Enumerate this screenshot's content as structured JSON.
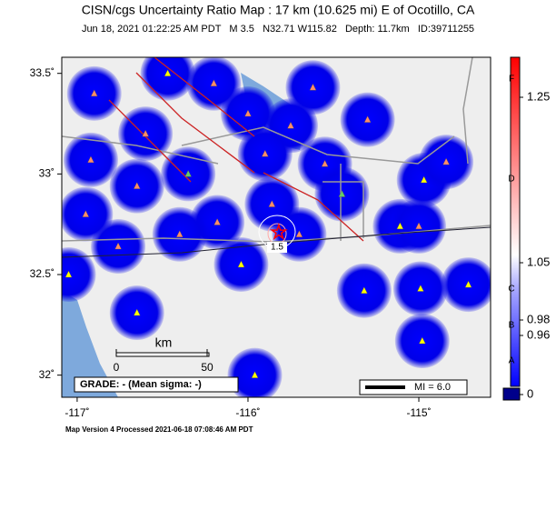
{
  "header": {
    "title": "CISN/cgs Uncertainty Ratio Map : 17 km (10.625 mi) E of Ocotillo, CA",
    "subtitle": "Jun 18, 2021 01:22:25 AM PDT   M 3.5   N32.71 W115.82   Depth: 11.7km   ID:39711255"
  },
  "map": {
    "xlim": [
      -117.09,
      -114.58
    ],
    "ylim": [
      31.89,
      33.58
    ],
    "xticks": [
      {
        "value": -117,
        "label": "-117˚"
      },
      {
        "value": -116,
        "label": "-116˚"
      },
      {
        "value": -115,
        "label": "-115˚"
      }
    ],
    "yticks": [
      {
        "value": 33.5,
        "label": "33.5˚"
      },
      {
        "value": 33,
        "label": "33˚"
      },
      {
        "value": 32.5,
        "label": "32.5˚"
      },
      {
        "value": 32,
        "label": "32˚"
      }
    ],
    "stations": [
      {
        "lon": -116.65,
        "lat": 32.31,
        "color": "#ffff00"
      },
      {
        "lon": -115.96,
        "lat": 32.0,
        "color": "#ffff00"
      },
      {
        "lon": -115.32,
        "lat": 32.42,
        "color": "#ffff00"
      },
      {
        "lon": -114.99,
        "lat": 32.43,
        "color": "#ffff00"
      },
      {
        "lon": -114.71,
        "lat": 32.45,
        "color": "#ffff00"
      },
      {
        "lon": -114.98,
        "lat": 32.17,
        "color": "#ffff00"
      },
      {
        "lon": -115.62,
        "lat": 33.43,
        "color": "#ff8c69"
      },
      {
        "lon": -115.3,
        "lat": 33.27,
        "color": "#ff8c69"
      },
      {
        "lon": -114.97,
        "lat": 32.97,
        "color": "#ffff00"
      },
      {
        "lon": -114.84,
        "lat": 33.06,
        "color": "#ff8c69"
      },
      {
        "lon": -115.11,
        "lat": 32.74,
        "color": "#ffff00"
      },
      {
        "lon": -115.0,
        "lat": 32.74,
        "color": "#ff8c69"
      },
      {
        "lon": -116.04,
        "lat": 32.55,
        "color": "#ffff00"
      },
      {
        "lon": -116.65,
        "lat": 32.94,
        "color": "#ff8c69"
      },
      {
        "lon": -116.92,
        "lat": 33.07,
        "color": "#ff8c69"
      },
      {
        "lon": -116.76,
        "lat": 32.64,
        "color": "#ff8c69"
      },
      {
        "lon": -116.18,
        "lat": 32.76,
        "color": "#ff8c69"
      },
      {
        "lon": -115.86,
        "lat": 32.85,
        "color": "#ff8c69"
      },
      {
        "lon": -115.75,
        "lat": 33.24,
        "color": "#ff8c69"
      },
      {
        "lon": -116.47,
        "lat": 33.5,
        "color": "#ffff00"
      },
      {
        "lon": -117.05,
        "lat": 32.5,
        "color": "#ffff00"
      },
      {
        "lon": -116.9,
        "lat": 33.4,
        "color": "#ff8c69"
      },
      {
        "lon": -116.6,
        "lat": 33.2,
        "color": "#ff8c69"
      },
      {
        "lon": -116.35,
        "lat": 33.0,
        "color": "#66cc66"
      },
      {
        "lon": -116.0,
        "lat": 33.3,
        "color": "#ff8c69"
      },
      {
        "lon": -115.55,
        "lat": 33.05,
        "color": "#ff8c69"
      },
      {
        "lon": -115.45,
        "lat": 32.9,
        "color": "#66cc66"
      },
      {
        "lon": -116.4,
        "lat": 32.7,
        "color": "#ff8c69"
      },
      {
        "lon": -116.95,
        "lat": 32.8,
        "color": "#ff8c69"
      },
      {
        "lon": -115.7,
        "lat": 32.7,
        "color": "#ff8c69"
      },
      {
        "lon": -115.9,
        "lat": 33.1,
        "color": "#ff8c69"
      },
      {
        "lon": -116.2,
        "lat": 33.45,
        "color": "#ff8c69"
      }
    ],
    "epicenter": {
      "lon": -115.82,
      "lat": 32.71
    },
    "contour_label": "1.5",
    "scale_bar": {
      "unit": "km",
      "ticks": [
        0,
        50
      ]
    },
    "grade": "GRADE: - (Mean sigma: -)",
    "legend": "MI = 6.0"
  },
  "colorbar": {
    "ticks": [
      1.25,
      1.05,
      0.98,
      0.96,
      0
    ],
    "grades": [
      "F",
      "D",
      "C",
      "B",
      "A"
    ]
  },
  "footer": "Map Version 4 Processed 2021-06-18 07:08:46 AM PDT"
}
